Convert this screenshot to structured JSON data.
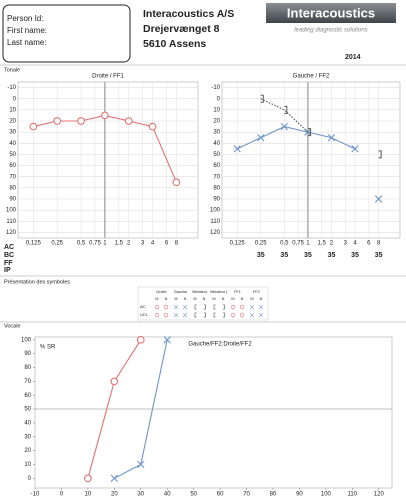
{
  "header": {
    "person_fields": [
      "Person Id:",
      "First name:",
      "Last name:"
    ],
    "company": [
      "Interacoustics A/S",
      "Drejervænget 8",
      "5610 Assens"
    ],
    "logo": "Interacoustics",
    "tagline": "leading diagnostic solutions",
    "year": "2014"
  },
  "tonal_label": "Tonale",
  "row_labels": [
    "AC",
    "BC",
    "FF",
    "IP"
  ],
  "symbols_label": "Présentation des symboles",
  "symbols": {
    "columns": [
      "Droite",
      "Gauche",
      "Vibrateur",
      "Vibrateur (",
      "FF1",
      "FF2"
    ],
    "sub_columns": [
      "M",
      "N"
    ],
    "rows": [
      "AC",
      "UCL"
    ]
  },
  "vocal_label": "Vocale",
  "chart_data": [
    {
      "type": "audiogram",
      "title": "Droite / FF1",
      "xscale": "log",
      "y_reversed": true,
      "grid": true,
      "reference_x": 1,
      "x": [
        0.125,
        0.25,
        0.5,
        1,
        2,
        4,
        8
      ],
      "series": [
        {
          "color": "#e07272",
          "marker": "circle",
          "line": "solid",
          "values": [
            25,
            20,
            20,
            15,
            20,
            25,
            75
          ]
        }
      ],
      "xlim": [
        0.08,
        15
      ],
      "ylim": [
        -15,
        125
      ],
      "xticks": [
        {
          "value": 0.125,
          "label": "0,125"
        },
        {
          "value": 0.25,
          "label": "0,25"
        },
        {
          "value": 0.5,
          "label": "0,5"
        },
        {
          "value": 0.75,
          "label": "0,75"
        },
        1,
        {
          "value": 1.5,
          "label": "1,5"
        },
        2,
        3,
        4,
        6,
        8
      ],
      "yticks": [
        -10,
        0,
        10,
        20,
        30,
        40,
        50,
        60,
        70,
        80,
        90,
        100,
        110,
        120
      ]
    },
    {
      "type": "audiogram",
      "title": "Gauche / FF2",
      "xscale": "log",
      "y_reversed": true,
      "grid": true,
      "reference_x": 1,
      "x": [
        0.125,
        0.25,
        0.5,
        1,
        2,
        4,
        8
      ],
      "series": [
        {
          "color": "#6f95c8",
          "marker": "x",
          "line": "solid",
          "values": [
            45,
            35,
            25,
            30,
            35,
            45,
            null
          ]
        },
        {
          "color": "#6f95c8",
          "marker": "x",
          "line": "solid",
          "values": [
            null,
            null,
            null,
            null,
            null,
            null,
            90
          ]
        },
        {
          "color": "#555555",
          "marker": "bracket",
          "line": "dotted",
          "values": [
            null,
            0,
            10,
            30,
            null,
            null,
            50
          ]
        }
      ],
      "masking": [
        null,
        35,
        35,
        35,
        35,
        35,
        35
      ],
      "xlim": [
        0.08,
        15
      ],
      "ylim": [
        -15,
        125
      ],
      "xticks": [
        {
          "value": 0.125,
          "label": "0,125"
        },
        {
          "value": 0.25,
          "label": "0,25"
        },
        {
          "value": 0.5,
          "label": "0,5"
        },
        {
          "value": 0.75,
          "label": "0,75"
        },
        1,
        {
          "value": 1.5,
          "label": "1,5"
        },
        2,
        3,
        4,
        6,
        8
      ],
      "yticks": [
        -10,
        0,
        10,
        20,
        30,
        40,
        50,
        60,
        70,
        80,
        90,
        100,
        110,
        120
      ]
    },
    {
      "type": "line",
      "title": "Gauche/FF2:Droite/FF2",
      "y_label": "% SR",
      "reference_y": 50,
      "series": [
        {
          "color": "#e07272",
          "marker": "circle",
          "x": [
            10,
            20,
            30
          ],
          "values": [
            0,
            70,
            100
          ]
        },
        {
          "color": "#6f95c8",
          "marker": "x",
          "x": [
            20,
            30,
            40
          ],
          "values": [
            0,
            10,
            100
          ]
        }
      ],
      "xlim": [
        -10,
        125
      ],
      "ylim": [
        -7,
        102
      ],
      "xticks": [
        -10,
        0,
        10,
        20,
        30,
        40,
        50,
        60,
        70,
        80,
        90,
        100,
        110,
        120
      ],
      "yticks": [
        0,
        10,
        20,
        30,
        40,
        50,
        60,
        70,
        80,
        90,
        100
      ]
    }
  ]
}
